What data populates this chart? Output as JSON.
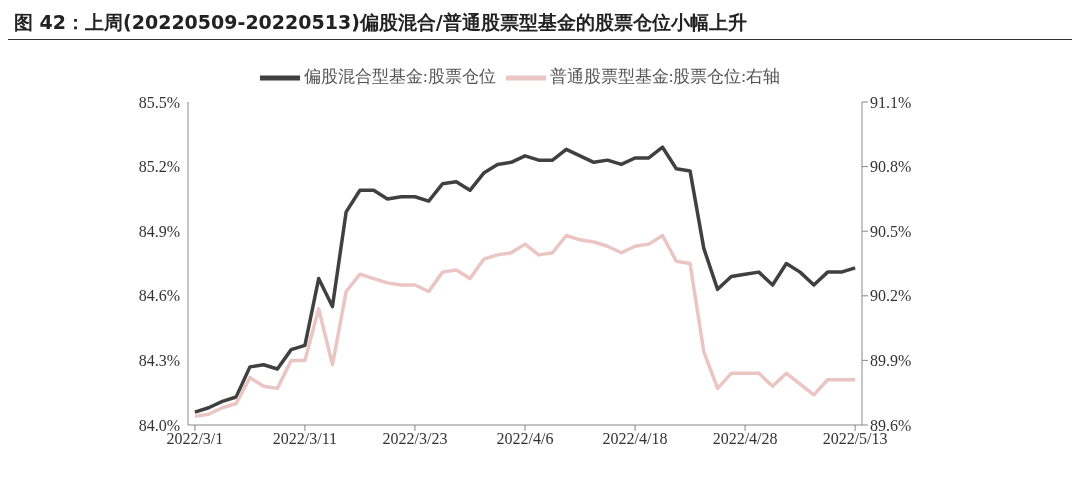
{
  "chart_data": {
    "type": "line",
    "title": "图 42：上周(20220509-20220513)偏股混合/普通股票型基金的股票仓位小幅上升",
    "categories": [
      "2022/3/1",
      null,
      null,
      null,
      null,
      null,
      null,
      null,
      "2022/3/11",
      null,
      null,
      null,
      null,
      null,
      null,
      null,
      "2022/3/23",
      null,
      null,
      null,
      null,
      null,
      null,
      null,
      "2022/4/6",
      null,
      null,
      null,
      null,
      null,
      null,
      null,
      "2022/4/18",
      null,
      null,
      null,
      null,
      null,
      null,
      null,
      "2022/4/28",
      null,
      null,
      null,
      null,
      null,
      null,
      null,
      "2022/5/13"
    ],
    "series": [
      {
        "name": "偏股混合型基金:股票仓位",
        "color": "#404040",
        "values": [
          84.06,
          84.08,
          84.11,
          84.13,
          84.27,
          84.28,
          84.26,
          84.35,
          84.37,
          84.68,
          84.55,
          84.99,
          85.09,
          85.09,
          85.05,
          85.06,
          85.06,
          85.04,
          85.12,
          85.13,
          85.09,
          85.17,
          85.21,
          85.22,
          85.25,
          85.23,
          85.23,
          85.28,
          85.25,
          85.22,
          85.23,
          85.21,
          85.24,
          85.24,
          85.29,
          85.19,
          85.18,
          84.82,
          84.63,
          84.69,
          84.7,
          84.71,
          84.65,
          84.75,
          84.71,
          84.65,
          84.71,
          84.71,
          84.73
        ]
      },
      {
        "name": "普通股票型基金:股票仓位:右轴",
        "color": "#ebc4c4",
        "axis": "y2",
        "values": [
          89.64,
          89.65,
          89.68,
          89.7,
          89.82,
          89.78,
          89.77,
          89.9,
          89.9,
          90.14,
          89.88,
          90.22,
          90.3,
          90.28,
          90.26,
          90.25,
          90.25,
          90.22,
          90.31,
          90.32,
          90.28,
          90.37,
          90.39,
          90.4,
          90.44,
          90.39,
          90.4,
          90.48,
          90.46,
          90.45,
          90.43,
          90.4,
          90.43,
          90.44,
          90.48,
          90.36,
          90.35,
          89.94,
          89.77,
          89.84,
          89.84,
          89.84,
          89.78,
          89.84,
          89.79,
          89.74,
          89.81,
          89.81,
          89.81
        ]
      }
    ],
    "ylim": [
      84.0,
      85.5
    ],
    "yticks": [
      {
        "value": 84.0,
        "label": "84.0%"
      },
      {
        "value": 84.3,
        "label": "84.3%"
      },
      {
        "value": 84.6,
        "label": "84.6%"
      },
      {
        "value": 84.9,
        "label": "84.9%"
      },
      {
        "value": 85.2,
        "label": "85.2%"
      },
      {
        "value": 85.5,
        "label": "85.5%"
      }
    ],
    "y2lim": [
      89.6,
      91.1
    ],
    "y2ticks": [
      {
        "value": 89.6,
        "label": "89.6%"
      },
      {
        "value": 89.9,
        "label": "89.9%"
      },
      {
        "value": 90.2,
        "label": "90.2%"
      },
      {
        "value": 90.5,
        "label": "90.5%"
      },
      {
        "value": 90.8,
        "label": "90.8%"
      },
      {
        "value": 91.1,
        "label": "91.1%"
      }
    ],
    "legend": "top",
    "grid": false,
    "marker": "none",
    "line_style": "solid"
  }
}
